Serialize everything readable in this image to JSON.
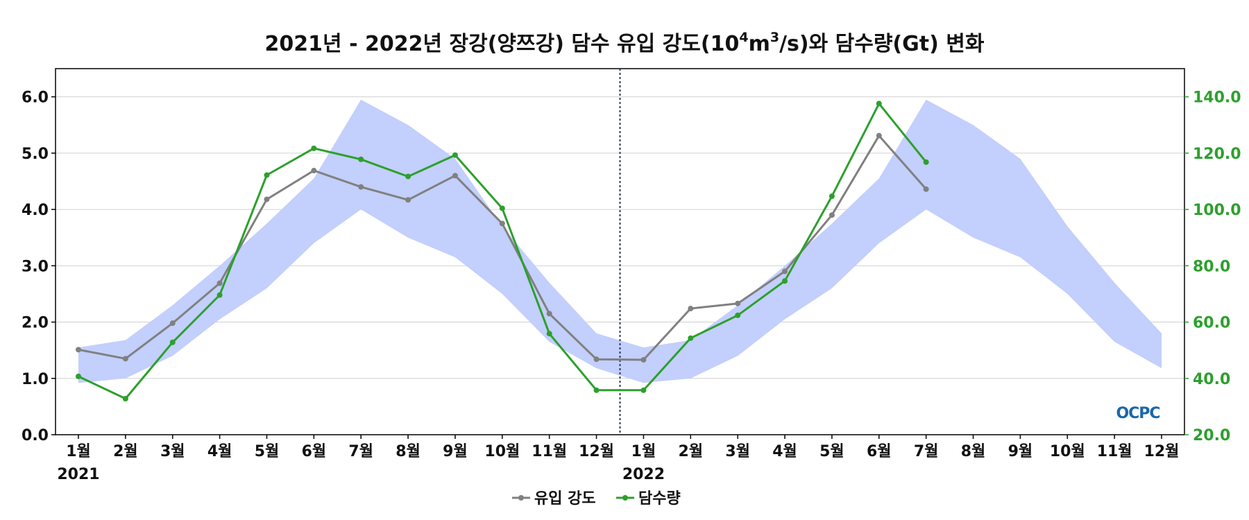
{
  "chart_data": {
    "type": "line",
    "title": {
      "prefix": "2021년 - 2022년 장강(양쯔강) 담수 유입 강도(10",
      "sup1": "4",
      "mid": "m",
      "sup2": "3",
      "suffix": "/s)와 담수량(Gt) 변화"
    },
    "x_labels": [
      "1월",
      "2월",
      "3월",
      "4월",
      "5월",
      "6월",
      "7월",
      "8월",
      "9월",
      "10월",
      "11월",
      "12월",
      "1월",
      "2월",
      "3월",
      "4월",
      "5월",
      "6월",
      "7월",
      "8월",
      "9월",
      "10월",
      "11월",
      "12월"
    ],
    "year_labels": [
      {
        "label": "2021",
        "index": 0
      },
      {
        "label": "2022",
        "index": 12
      }
    ],
    "divider_after_index": 11,
    "y_left": {
      "ylim": [
        0,
        6.5
      ],
      "ticks": [
        "0.0",
        "1.0",
        "2.0",
        "3.0",
        "4.0",
        "5.0",
        "6.0"
      ]
    },
    "y_right": {
      "ylim": [
        20,
        150
      ],
      "ticks": [
        "20.0",
        "40.0",
        "60.0",
        "80.0",
        "100.0",
        "120.0",
        "140.0"
      ],
      "color": "#2ca02c"
    },
    "climatology_band": {
      "axis": "left",
      "color": "#c3cffc",
      "upper": [
        1.55,
        1.68,
        2.3,
        3.0,
        3.75,
        4.55,
        5.95,
        5.5,
        4.9,
        3.7,
        2.7,
        1.8,
        1.55,
        1.68,
        2.3,
        3.0,
        3.75,
        4.55,
        5.95,
        5.5,
        4.9,
        3.7,
        2.7,
        1.8
      ],
      "lower": [
        0.92,
        1.0,
        1.4,
        2.05,
        2.6,
        3.4,
        4.0,
        3.5,
        3.15,
        2.5,
        1.65,
        1.18,
        0.92,
        1.0,
        1.4,
        2.05,
        2.6,
        3.4,
        4.0,
        3.5,
        3.15,
        2.5,
        1.65,
        1.18
      ]
    },
    "series": [
      {
        "name": "유입 강도",
        "axis": "left",
        "color": "#808080",
        "values": [
          1.51,
          1.35,
          1.98,
          2.69,
          4.18,
          4.69,
          4.4,
          4.17,
          4.6,
          3.75,
          2.15,
          1.34,
          1.33,
          2.24,
          2.33,
          2.9,
          3.9,
          5.31,
          4.36
        ]
      },
      {
        "name": "담수량",
        "axis": "right",
        "color": "#2ca02c",
        "values": [
          40.7,
          32.8,
          52.8,
          69.6,
          112.2,
          121.7,
          117.8,
          111.7,
          119.3,
          100.4,
          55.9,
          35.8,
          35.8,
          54.3,
          62.4,
          74.6,
          104.7,
          137.6,
          116.8
        ]
      }
    ],
    "legend_position": "bottom-center",
    "grid": true,
    "logo_text": "OCPC"
  }
}
